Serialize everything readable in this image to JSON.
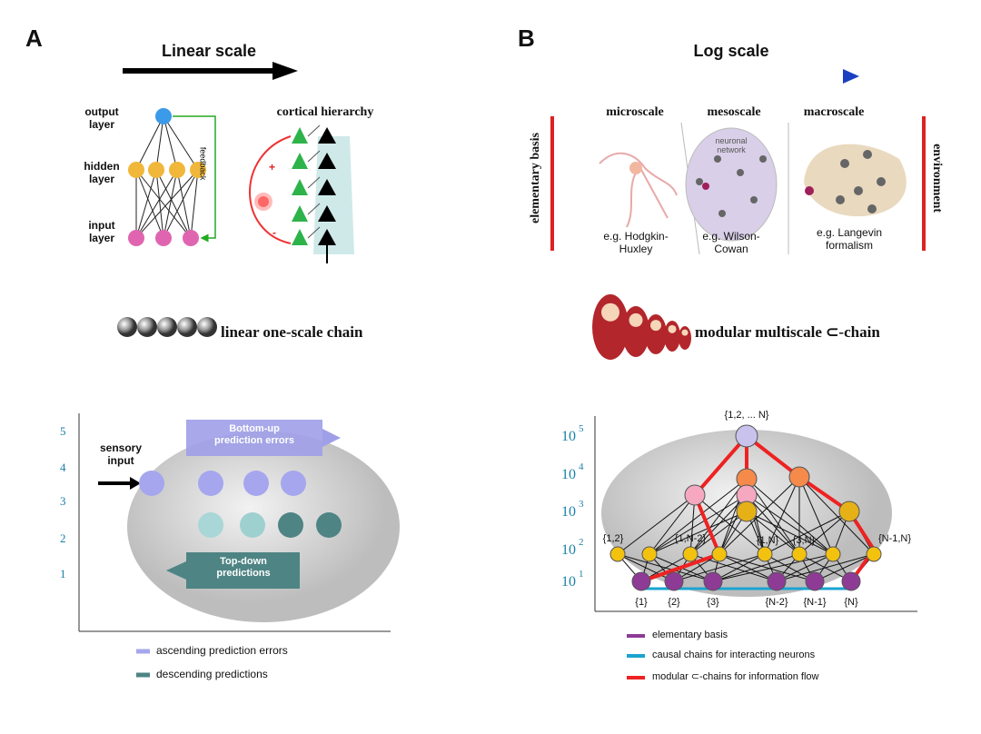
{
  "panel_a": {
    "label": "A",
    "scale_title": "Linear scale",
    "network": {
      "output": "output\nlayer",
      "hidden": "hidden\nlayer",
      "input": "input\nlayer",
      "feedback": "feedback"
    },
    "cortical": {
      "title": "cortical hierarchy",
      "plus": "+",
      "minus": "-"
    },
    "chain": "linear one-scale chain",
    "brain": {
      "levels": [
        5,
        4,
        3,
        2,
        1
      ],
      "sensory": "sensory\ninput",
      "bottom_up": "Bottom-up\nprediction errors",
      "top_down": "Top-down\npredictions"
    },
    "legend": [
      "ascending prediction errors",
      "descending predictions"
    ]
  },
  "panel_b": {
    "label": "B",
    "scale_title": "Log scale",
    "basis": "elementary basis",
    "environment": "environment",
    "scales": [
      "microscale",
      "mesoscale",
      "macroscale"
    ],
    "network_label": "neuronal\nnetwork",
    "examples": [
      "e.g. Hodgkin-\nHuxley",
      "e.g. Wilson-\nCowan",
      "e.g. Langevin\nformalism"
    ],
    "chain": "modular multiscale  ⊂-chain",
    "levels": [
      {
        "base": 10,
        "exponent": 5
      },
      {
        "base": 10,
        "exponent": 4
      },
      {
        "base": 10,
        "exponent": 3
      },
      {
        "base": 10,
        "exponent": 2
      },
      {
        "base": 10,
        "exponent": 1
      }
    ],
    "top_node": "{1,2, ... N}",
    "pair_nodes": [
      "{1,2}",
      "{1,N-2}",
      "{1,N}",
      "{3,N}",
      "{N-1,N}"
    ],
    "single_nodes": [
      "{1}",
      "{2}",
      "{3}",
      "{N-2}",
      "{N-1}",
      "{N}"
    ],
    "legend": [
      "elementary basis",
      "causal chains for interacting neurons",
      "modular ⊂-chains for information flow"
    ]
  }
}
